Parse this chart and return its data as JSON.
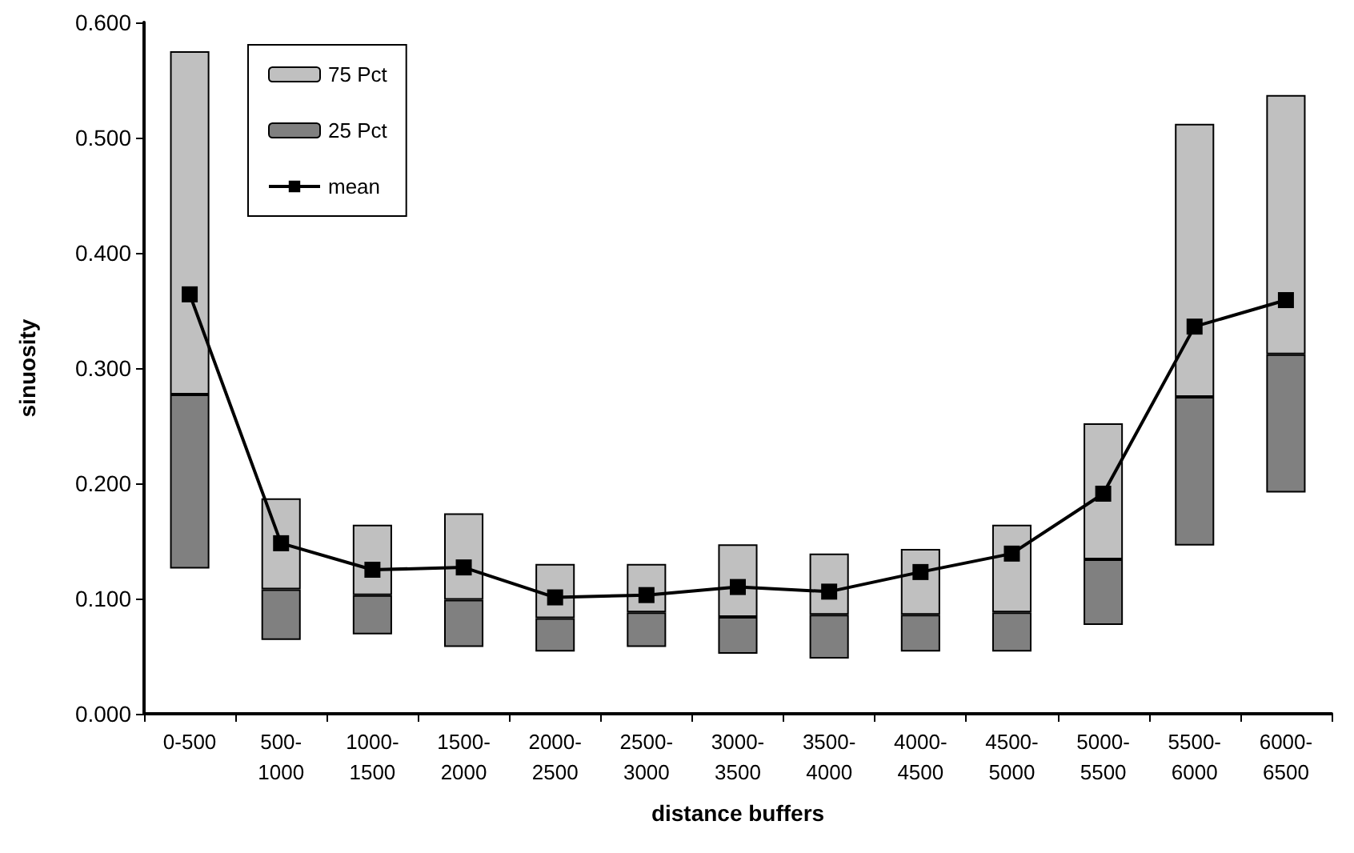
{
  "chart_data": {
    "type": "bar",
    "xlabel": "distance buffers",
    "ylabel": "sinuosity",
    "categories": [
      "0-500",
      "500-1000",
      "1000-1500",
      "1500-2000",
      "2000-2500",
      "2500-3000",
      "3000-3500",
      "3500-4000",
      "4000-4500",
      "4500-5000",
      "5000-5500",
      "5500-6000",
      "6000-6500"
    ],
    "series": [
      {
        "name": "25 Pct",
        "color": "#808080",
        "base": [
          0.126,
          0.064,
          0.069,
          0.058,
          0.054,
          0.058,
          0.052,
          0.048,
          0.054,
          0.054,
          0.077,
          0.146,
          0.192
        ],
        "values": [
          0.151,
          0.044,
          0.034,
          0.041,
          0.029,
          0.03,
          0.032,
          0.038,
          0.032,
          0.034,
          0.057,
          0.129,
          0.12
        ]
      },
      {
        "name": "75 Pct",
        "color": "#c0c0c0",
        "base": [
          0.277,
          0.108,
          0.103,
          0.099,
          0.083,
          0.088,
          0.084,
          0.086,
          0.086,
          0.088,
          0.134,
          0.275,
          0.312
        ],
        "values": [
          0.298,
          0.079,
          0.061,
          0.075,
          0.047,
          0.042,
          0.063,
          0.053,
          0.057,
          0.076,
          0.118,
          0.237,
          0.225
        ]
      },
      {
        "name": "mean",
        "type": "line",
        "color": "#000000",
        "marker": "square",
        "line_style": "solid",
        "values": [
          0.364,
          0.148,
          0.125,
          0.127,
          0.101,
          0.103,
          0.11,
          0.106,
          0.123,
          0.139,
          0.191,
          0.336,
          0.359
        ]
      }
    ],
    "ylim": [
      0,
      0.6
    ],
    "yticks": [
      {
        "value": 0,
        "label": "0.000"
      },
      {
        "value": 0.1,
        "label": "0.100"
      },
      {
        "value": 0.2,
        "label": "0.200"
      },
      {
        "value": 0.3,
        "label": "0.300"
      },
      {
        "value": 0.4,
        "label": "0.400"
      },
      {
        "value": 0.5,
        "label": "0.500"
      },
      {
        "value": 0.6,
        "label": "0.600"
      }
    ],
    "grid": false,
    "legend": "top left"
  }
}
